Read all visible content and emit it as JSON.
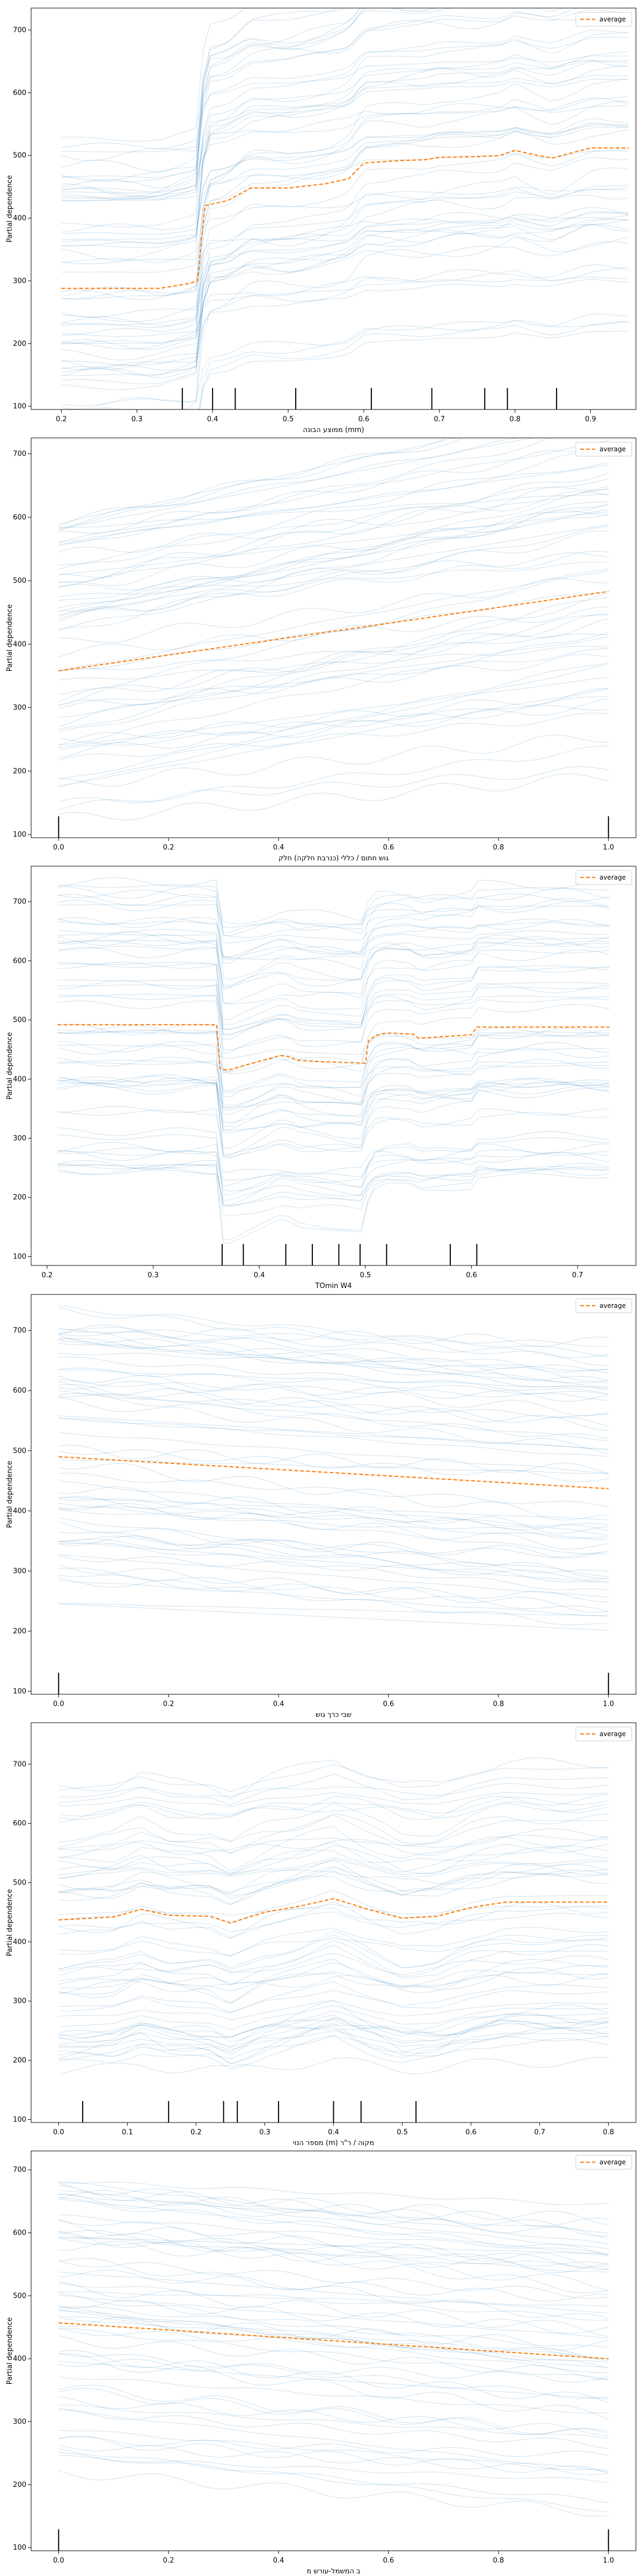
{
  "chart_data": [
    {
      "type": "line",
      "xlabel": "ממוצע הבונה (mm)",
      "ylabel": "Partial dependence",
      "xlim": [
        0.16,
        0.96
      ],
      "ylim": [
        95,
        735
      ],
      "xticks": [
        0.2,
        0.3,
        0.4,
        0.5,
        0.6,
        0.7,
        0.8,
        0.9
      ],
      "yticks": [
        100,
        200,
        300,
        400,
        500,
        600,
        700
      ],
      "legend": {
        "label": "average",
        "position": "top-right"
      },
      "average": {
        "x": [
          0.2,
          0.33,
          0.37,
          0.38,
          0.39,
          0.42,
          0.45,
          0.5,
          0.55,
          0.58,
          0.6,
          0.65,
          0.68,
          0.7,
          0.75,
          0.78,
          0.8,
          0.83,
          0.85,
          0.9,
          0.95
        ],
        "y": [
          288,
          288,
          296,
          300,
          420,
          428,
          448,
          448,
          455,
          463,
          488,
          492,
          493,
          497,
          498,
          500,
          508,
          500,
          496,
          512,
          512
        ]
      },
      "rugs": [
        0.36,
        0.4,
        0.43,
        0.51,
        0.61,
        0.69,
        0.76,
        0.79,
        0.855
      ]
    },
    {
      "type": "line",
      "xlabel": "גוש חתום / כללי (כנרבת חלקה) חלק",
      "ylabel": "Partial dependence",
      "xlim": [
        -0.05,
        1.05
      ],
      "ylim": [
        95,
        725
      ],
      "xticks": [
        0.0,
        0.2,
        0.4,
        0.6,
        0.8,
        1.0
      ],
      "yticks": [
        100,
        200,
        300,
        400,
        500,
        600,
        700
      ],
      "legend": {
        "label": "average",
        "position": "top-right"
      },
      "average": {
        "x": [
          0,
          1
        ],
        "y": [
          358,
          483
        ]
      },
      "rugs": [
        0,
        1
      ]
    },
    {
      "type": "line",
      "xlabel": "TOmin W4",
      "ylabel": "Partial dependence",
      "xlim": [
        0.185,
        0.755
      ],
      "ylim": [
        85,
        760
      ],
      "xticks": [
        0.1,
        0.2,
        0.3,
        0.4,
        0.5,
        0.6,
        0.7
      ],
      "yticks": [
        100,
        200,
        300,
        400,
        500,
        600,
        700
      ],
      "legend": {
        "label": "average",
        "position": "top-right"
      },
      "average": {
        "x": [
          0.21,
          0.36,
          0.363,
          0.37,
          0.39,
          0.42,
          0.43,
          0.435,
          0.45,
          0.5,
          0.503,
          0.51,
          0.52,
          0.545,
          0.55,
          0.6,
          0.605,
          0.73
        ],
        "y": [
          492,
          492,
          418,
          415,
          425,
          440,
          437,
          432,
          430,
          427,
          465,
          474,
          478,
          476,
          469,
          475,
          488,
          488
        ]
      },
      "rugs": [
        0.365,
        0.385,
        0.425,
        0.45,
        0.475,
        0.495,
        0.52,
        0.58,
        0.605
      ]
    },
    {
      "type": "line",
      "xlabel": "שבי כרך גוש",
      "ylabel": "Partial dependence",
      "xlim": [
        -0.05,
        1.05
      ],
      "ylim": [
        95,
        760
      ],
      "xticks": [
        0.0,
        0.2,
        0.4,
        0.6,
        0.8,
        1.0
      ],
      "yticks": [
        100,
        200,
        300,
        400,
        500,
        600,
        700
      ],
      "legend": {
        "label": "average",
        "position": "top-right"
      },
      "average": {
        "x": [
          0,
          1
        ],
        "y": [
          490,
          437
        ]
      },
      "rugs": [
        0,
        1
      ]
    },
    {
      "type": "line",
      "xlabel": "מספר הנוי (m) מקוה / ר\"ר",
      "ylabel": "Partial dependence",
      "xlim": [
        -0.04,
        0.84
      ],
      "ylim": [
        95,
        770
      ],
      "xticks": [
        0.0,
        0.1,
        0.2,
        0.3,
        0.4,
        0.5,
        0.6,
        0.7,
        0.8
      ],
      "yticks": [
        100,
        200,
        300,
        400,
        500,
        600,
        700
      ],
      "legend": {
        "label": "average",
        "position": "top-right"
      },
      "average": {
        "x": [
          0.0,
          0.08,
          0.12,
          0.16,
          0.22,
          0.25,
          0.3,
          0.35,
          0.4,
          0.45,
          0.5,
          0.55,
          0.6,
          0.65,
          0.7,
          0.8
        ],
        "y": [
          437,
          442,
          455,
          445,
          443,
          432,
          450,
          460,
          473,
          455,
          440,
          443,
          458,
          467,
          467,
          467
        ]
      },
      "rugs": [
        0.035,
        0.16,
        0.24,
        0.26,
        0.32,
        0.4,
        0.44,
        0.52
      ]
    },
    {
      "type": "line",
      "xlabel": "ב המשמל-עורש מ",
      "ylabel": "Partial dependence",
      "xlim": [
        -0.05,
        1.05
      ],
      "ylim": [
        95,
        730
      ],
      "xticks": [
        0.0,
        0.2,
        0.4,
        0.6,
        0.8,
        1.0
      ],
      "yticks": [
        100,
        200,
        300,
        400,
        500,
        600,
        700
      ],
      "legend": {
        "label": "average",
        "position": "top-right"
      },
      "average": {
        "x": [
          0,
          1
        ],
        "y": [
          457,
          400
        ]
      },
      "rugs": [
        0,
        1
      ]
    }
  ],
  "colors": {
    "ice": "#1f77b4",
    "average": "#ff7f0e",
    "axis": "#000000"
  }
}
